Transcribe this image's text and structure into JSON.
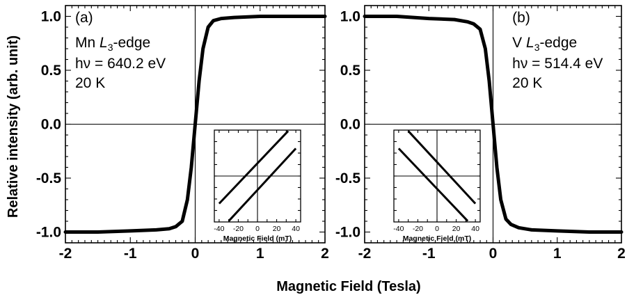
{
  "figure": {
    "xlabel": "Magnetic Field (Tesla)",
    "ylabel": "Relative intensity (arb. unit)"
  },
  "chart_data": [
    {
      "type": "line",
      "panel_label": "(a)",
      "annotation": {
        "element": "Mn",
        "edge_main": "L",
        "edge_sub": "3",
        "edge_suffix": "-edge",
        "photon_energy": "hν = 640.2 eV",
        "temperature": "20 K"
      },
      "xlim": [
        -2,
        2
      ],
      "ylim": [
        -1.1,
        1.1
      ],
      "x_ticks": [
        -2,
        -1,
        0,
        1,
        2
      ],
      "x_tick_labels": [
        "-2",
        "-1",
        "0",
        "1",
        "2"
      ],
      "y_ticks": [
        -1.0,
        -0.5,
        0.0,
        0.5,
        1.0
      ],
      "y_tick_labels": [
        "-1.0",
        "-0.5",
        "0.0",
        "0.5",
        "1.0"
      ],
      "grid": false,
      "reference_lines": {
        "x": 0,
        "y": 0
      },
      "series": [
        {
          "x": [
            -2,
            -1.5,
            -1.0,
            -0.6,
            -0.4,
            -0.3,
            -0.2,
            -0.12,
            -0.06,
            0,
            0.06,
            0.12,
            0.2,
            0.28,
            0.4,
            0.6,
            1.0,
            1.5,
            2
          ],
          "y": [
            -1.0,
            -1.0,
            -0.99,
            -0.98,
            -0.97,
            -0.95,
            -0.9,
            -0.7,
            -0.4,
            0.0,
            0.4,
            0.7,
            0.9,
            0.96,
            0.98,
            0.99,
            1.0,
            1.0,
            1.0
          ]
        }
      ],
      "inset": {
        "xlabel": "Magnetic Field (mT)",
        "xlim": [
          -45,
          45
        ],
        "ylim": [
          -1,
          1
        ],
        "x_ticks": [
          -40,
          -20,
          0,
          20,
          40
        ],
        "x_tick_labels": [
          "-40",
          "-20",
          "0",
          "20",
          "40"
        ],
        "reference_lines": {
          "x": 0,
          "y": 0
        },
        "series": [
          {
            "x": [
              -40,
              32
            ],
            "y": [
              -0.6,
              0.98
            ]
          },
          {
            "x": [
              -30,
              40
            ],
            "y": [
              -0.98,
              0.6
            ]
          }
        ]
      }
    },
    {
      "type": "line",
      "panel_label": "(b)",
      "annotation": {
        "element": "V",
        "edge_main": "L",
        "edge_sub": "3",
        "edge_suffix": "-edge",
        "photon_energy": "hν = 514.4 eV",
        "temperature": "20 K"
      },
      "xlim": [
        -2,
        2
      ],
      "ylim": [
        -1.1,
        1.1
      ],
      "x_ticks": [
        -2,
        -1,
        0,
        1,
        2
      ],
      "x_tick_labels": [
        "-2",
        "-1",
        "0",
        "1",
        "2"
      ],
      "y_ticks": [
        -1.0,
        -0.5,
        0.0,
        0.5,
        1.0
      ],
      "y_tick_labels": [
        "-1.0",
        "-0.5",
        "0.0",
        "0.5",
        "1.0"
      ],
      "grid": false,
      "reference_lines": {
        "x": 0,
        "y": 0
      },
      "series": [
        {
          "x": [
            -2,
            -1.5,
            -1.0,
            -0.6,
            -0.4,
            -0.3,
            -0.2,
            -0.12,
            -0.06,
            0,
            0.06,
            0.12,
            0.2,
            0.28,
            0.4,
            0.6,
            1.0,
            1.5,
            2
          ],
          "y": [
            1.0,
            1.0,
            0.98,
            0.97,
            0.95,
            0.93,
            0.88,
            0.7,
            0.4,
            0.0,
            -0.4,
            -0.7,
            -0.88,
            -0.93,
            -0.96,
            -0.98,
            -0.99,
            -1.0,
            -1.0
          ]
        }
      ],
      "inset": {
        "xlabel": "Magnetic Field (mT)",
        "xlim": [
          -45,
          45
        ],
        "ylim": [
          -1,
          1
        ],
        "x_ticks": [
          -40,
          -20,
          0,
          20,
          40
        ],
        "x_tick_labels": [
          "-40",
          "-20",
          "0",
          "20",
          "40"
        ],
        "reference_lines": {
          "x": 0,
          "y": 0
        },
        "series": [
          {
            "x": [
              -40,
              32
            ],
            "y": [
              0.6,
              -0.98
            ]
          },
          {
            "x": [
              -30,
              40
            ],
            "y": [
              0.98,
              -0.6
            ]
          }
        ]
      }
    }
  ]
}
